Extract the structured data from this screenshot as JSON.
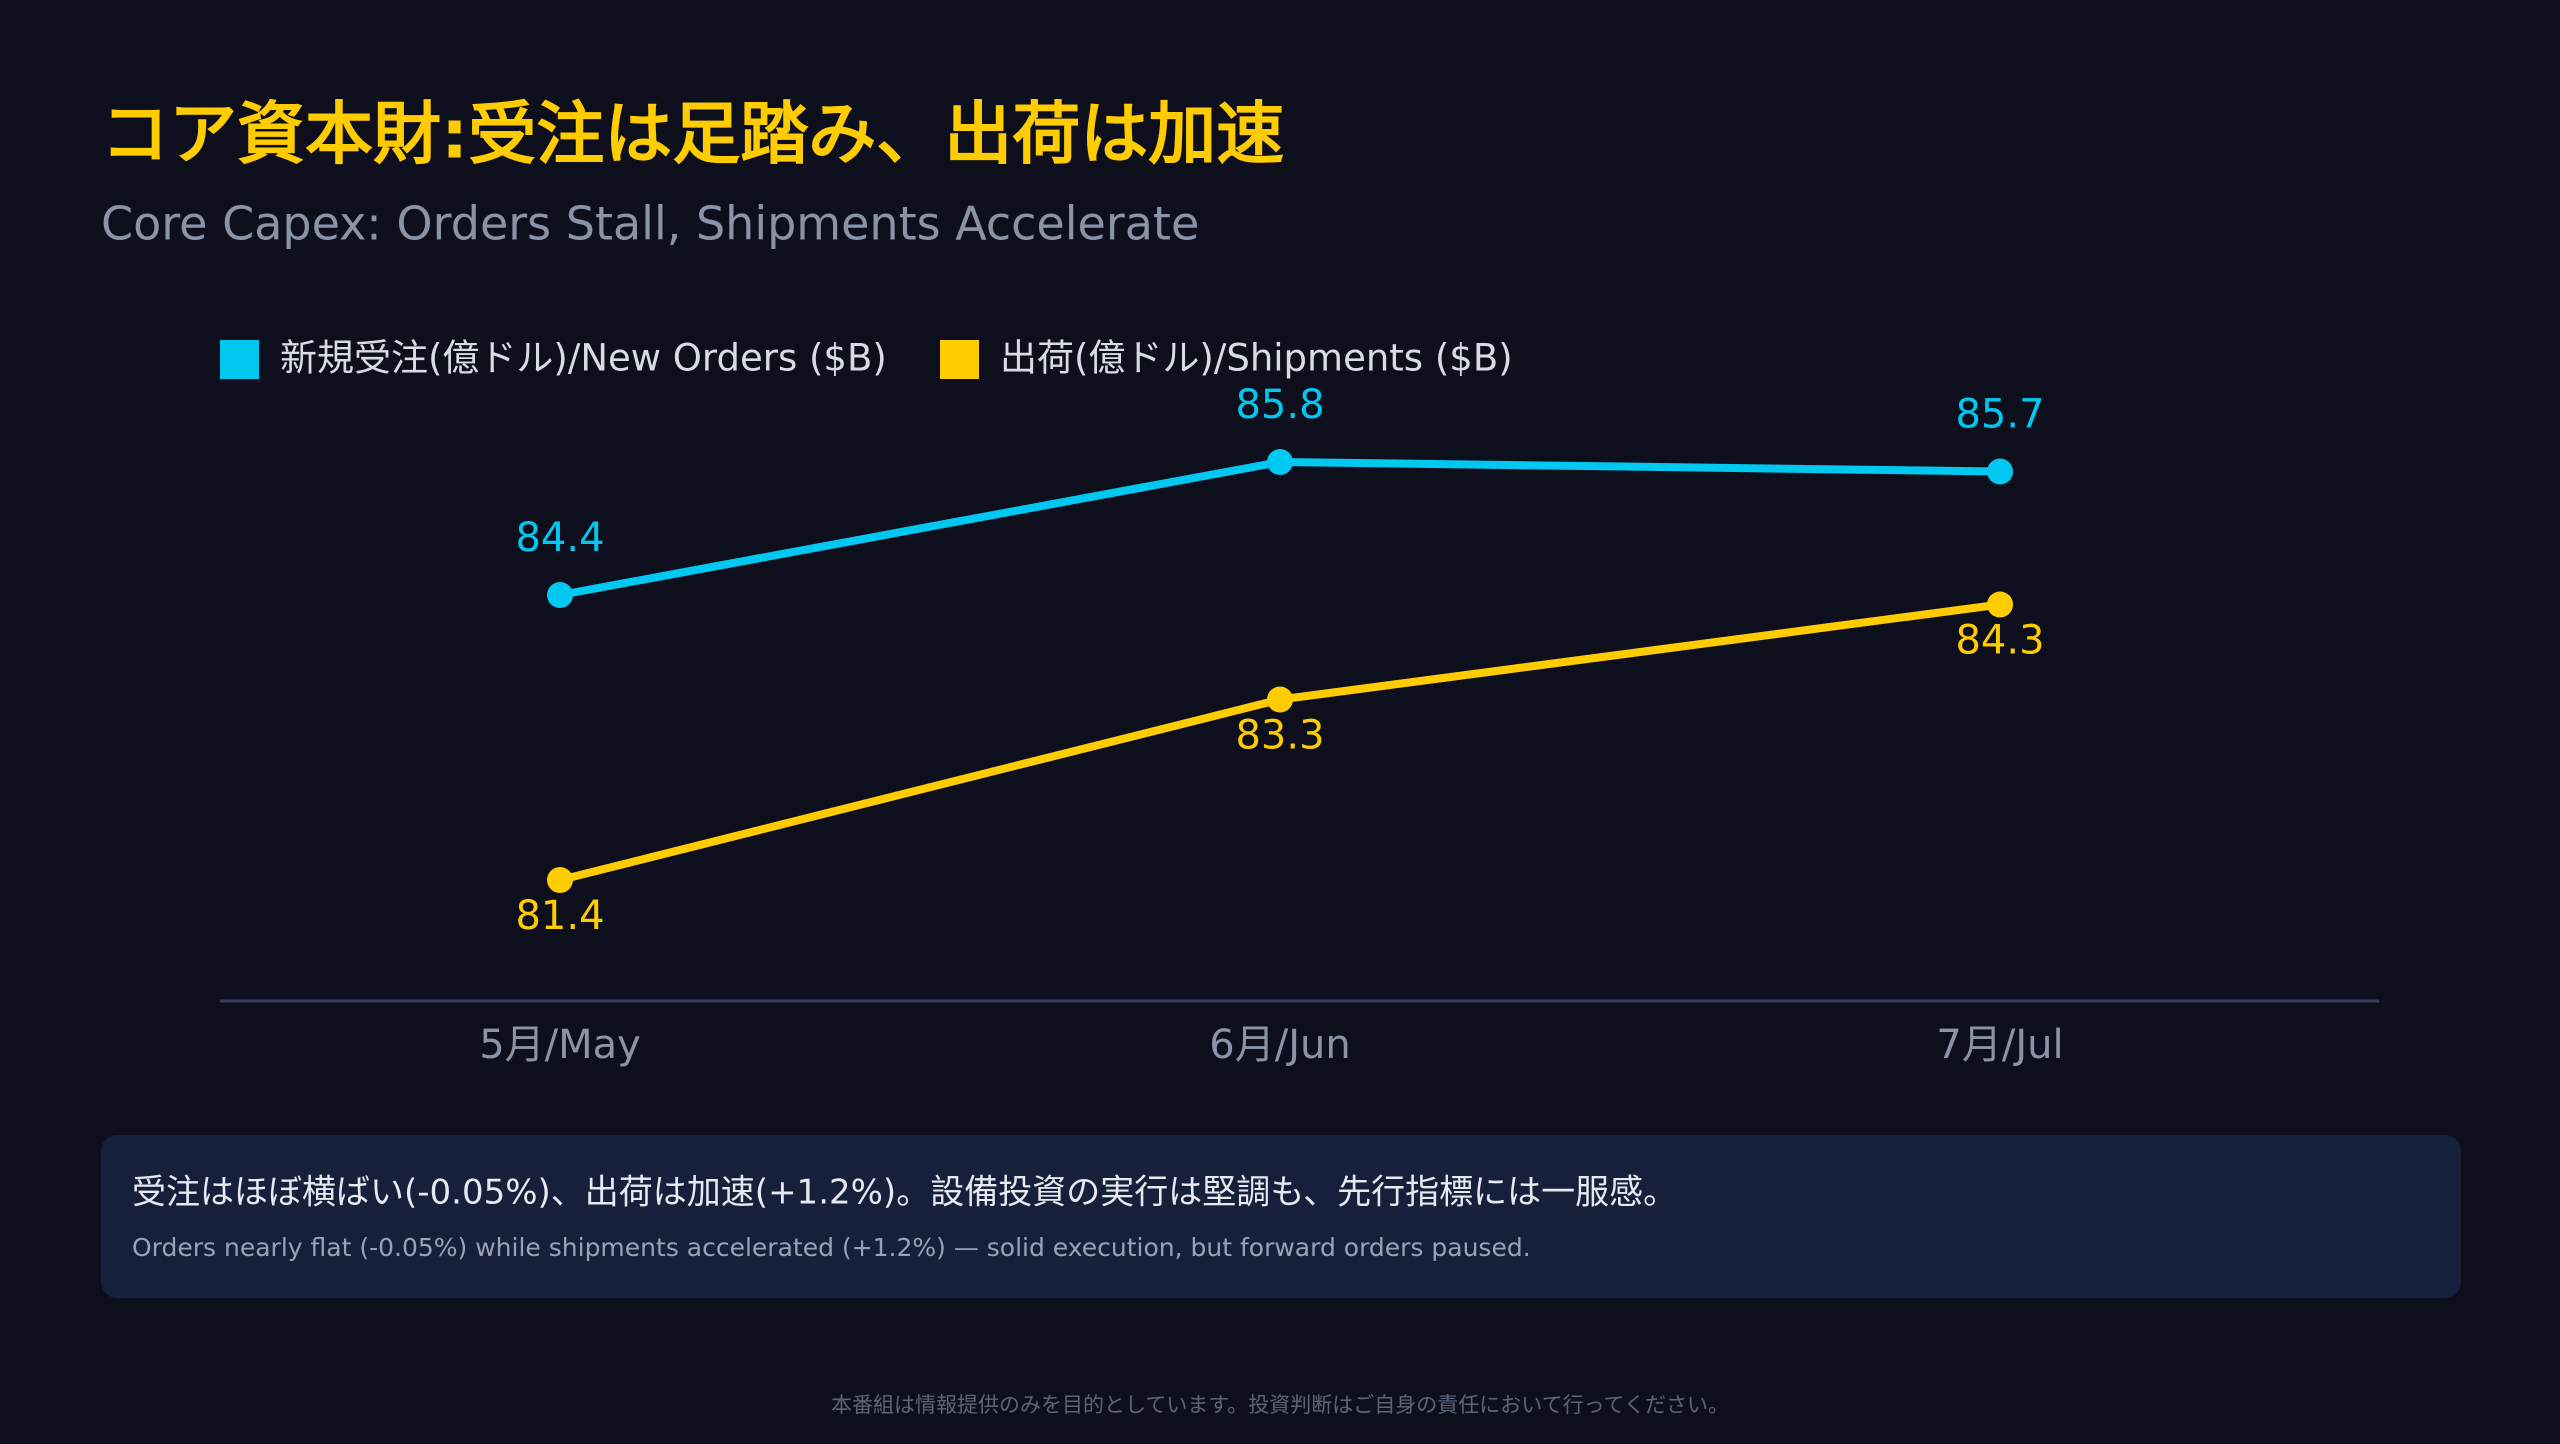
{
  "chart_data": {
    "type": "line",
    "title": "コア資本財:受注は足踏み、出荷は加速",
    "subtitle": "Core Capex: Orders Stall, Shipments Accelerate",
    "categories": [
      "5月/May",
      "6月/Jun",
      "7月/Jul"
    ],
    "series": [
      {
        "name": "新規受注(億ドル)/New Orders ($B)",
        "color": "#00c8f0",
        "values": [
          84.4,
          85.8,
          85.7
        ]
      },
      {
        "name": "出荷(億ドル)/Shipments ($B)",
        "color": "#ffcc00",
        "values": [
          81.4,
          83.3,
          84.3
        ]
      }
    ]
  },
  "note": {
    "ja": "受注はほぼ横ばい(-0.05%)、出荷は加速(+1.2%)。設備投資の実行は堅調も、先行指標には一服感。",
    "en": "Orders nearly flat (-0.05%) while shipments accelerated (+1.2%) — solid execution, but forward orders paused."
  },
  "disclaimer": "本番組は情報提供のみを目的としています。投資判断はご自身の責任において行ってください。"
}
